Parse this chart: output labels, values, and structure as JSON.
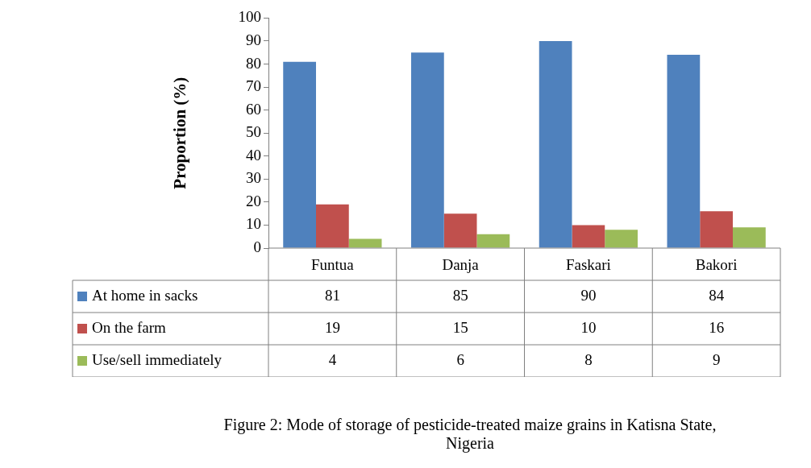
{
  "chart_data": {
    "type": "bar",
    "ylabel": "Proportion (%)",
    "categories": [
      "Funtua",
      "Danja",
      "Faskari",
      "Bakori"
    ],
    "series": [
      {
        "name": "At home in sacks",
        "color": "#4f81bd",
        "values": [
          81,
          85,
          90,
          84
        ]
      },
      {
        "name": "On the farm",
        "color": "#c0504d",
        "values": [
          19,
          15,
          10,
          16
        ]
      },
      {
        "name": "Use/sell immediately",
        "color": "#9bbb59",
        "values": [
          4,
          6,
          8,
          9
        ]
      }
    ],
    "ylim": [
      0,
      100
    ],
    "yticks": [
      0,
      10,
      20,
      30,
      40,
      50,
      60,
      70,
      80,
      90,
      100
    ],
    "grid": false,
    "legend": "bottom left",
    "data_labels": true,
    "annotations": [
      "Figure 2: Mode of storage of pesticide-treated maize grains in Katisna State, Nigeria"
    ]
  }
}
